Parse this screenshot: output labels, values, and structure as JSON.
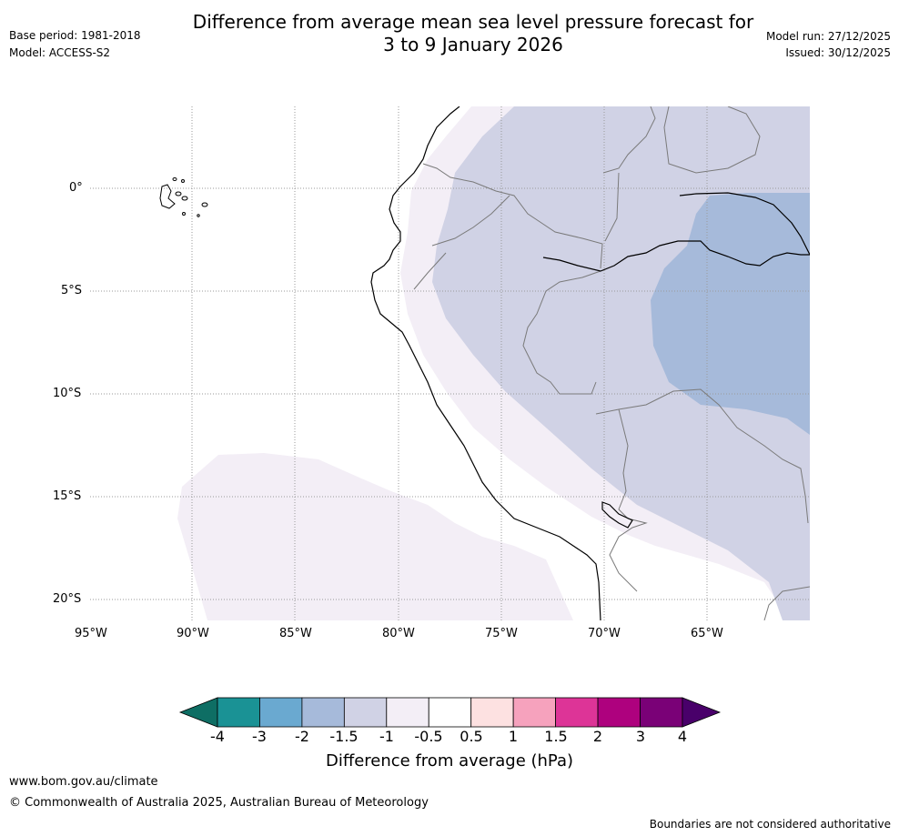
{
  "header": {
    "title_line1": "Difference from average mean sea level pressure forecast for",
    "title_line2": "3 to 9 January 2026",
    "base_period": "Base period: 1981-2018",
    "model": "Model: ACCESS-S2",
    "model_run": "Model run: 27/12/2025",
    "issued": "Issued: 30/12/2025"
  },
  "map": {
    "lat_labels": [
      "0°",
      "5°S",
      "10°S",
      "15°S",
      "20°S"
    ],
    "lon_labels": [
      "95°W",
      "90°W",
      "85°W",
      "80°W",
      "75°W",
      "70°W",
      "65°W"
    ]
  },
  "colorbar": {
    "tick_labels": [
      "-4",
      "-3",
      "-2",
      "-1.5",
      "-1",
      "-0.5",
      "0.5",
      "1",
      "1.5",
      "2",
      "3",
      "4"
    ],
    "colors": [
      "#0e6e64",
      "#1a9295",
      "#6aa9d0",
      "#a6bada",
      "#d0d2e5",
      "#f3eef6",
      "#ffffff",
      "#fde1e1",
      "#f6a2bd",
      "#dd3497",
      "#ae017e",
      "#7a0177",
      "#49006a"
    ],
    "label": "Difference from average (hPa)"
  },
  "footer": {
    "url": "www.bom.gov.au/climate",
    "copyright": "© Commonwealth of Australia 2025, Australian Bureau of Meteorology",
    "disclaimer": "Boundaries are not considered authoritative"
  }
}
